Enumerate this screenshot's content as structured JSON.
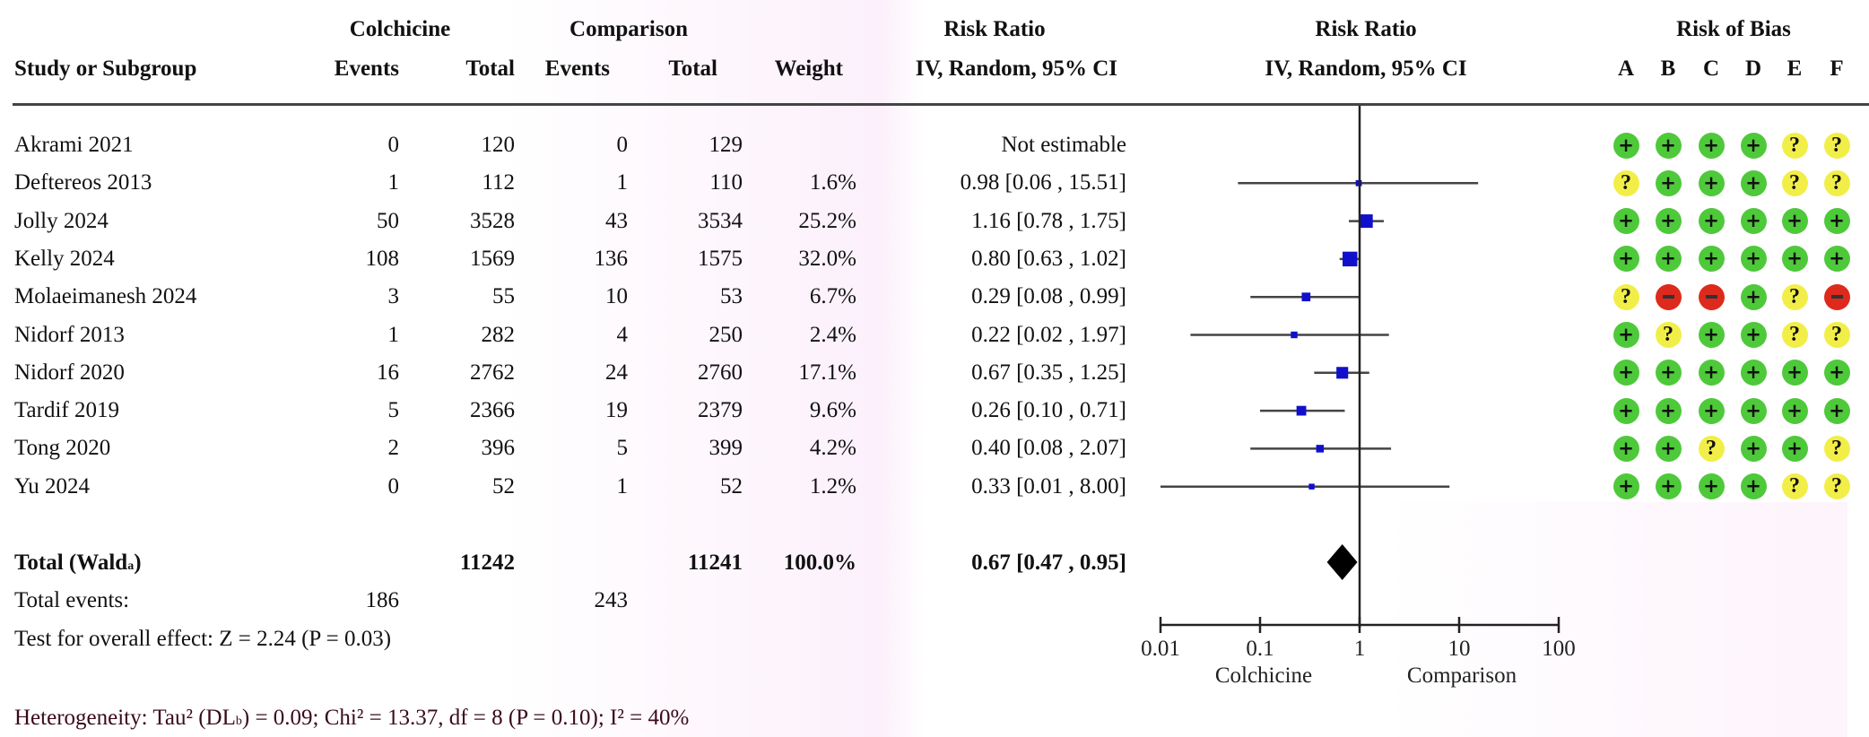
{
  "header": {
    "group1": "Colchicine",
    "group2": "Comparison",
    "risk_ratio": "Risk Ratio",
    "risk_ratio_plot": "Risk Ratio",
    "risk_of_bias": "Risk of Bias",
    "study": "Study or Subgroup",
    "events1": "Events",
    "total1": "Total",
    "events2": "Events",
    "total2": "Total",
    "weight": "Weight",
    "method": "IV, Random, 95% CI",
    "method_plot": "IV, Random, 95% CI",
    "bias_letters": [
      "A",
      "B",
      "C",
      "D",
      "E",
      "F"
    ]
  },
  "studies": [
    {
      "name": "Akrami 2021",
      "e1": "0",
      "n1": "120",
      "e2": "0",
      "n2": "129",
      "weight": "",
      "ci": "Not estimable",
      "rr": null,
      "lo": null,
      "hi": null,
      "w": 0,
      "bias": [
        "+",
        "+",
        "+",
        "+",
        "?",
        "?"
      ]
    },
    {
      "name": "Deftereos 2013",
      "e1": "1",
      "n1": "112",
      "e2": "1",
      "n2": "110",
      "weight": "1.6%",
      "ci": "0.98 [0.06 , 15.51]",
      "rr": 0.98,
      "lo": 0.06,
      "hi": 15.51,
      "w": 1.6,
      "bias": [
        "?",
        "+",
        "+",
        "+",
        "?",
        "?"
      ]
    },
    {
      "name": "Jolly 2024",
      "e1": "50",
      "n1": "3528",
      "e2": "43",
      "n2": "3534",
      "weight": "25.2%",
      "ci": "1.16 [0.78 , 1.75]",
      "rr": 1.16,
      "lo": 0.78,
      "hi": 1.75,
      "w": 25.2,
      "bias": [
        "+",
        "+",
        "+",
        "+",
        "+",
        "+"
      ]
    },
    {
      "name": "Kelly 2024",
      "e1": "108",
      "n1": "1569",
      "e2": "136",
      "n2": "1575",
      "weight": "32.0%",
      "ci": "0.80 [0.63 , 1.02]",
      "rr": 0.8,
      "lo": 0.63,
      "hi": 1.02,
      "w": 32.0,
      "bias": [
        "+",
        "+",
        "+",
        "+",
        "+",
        "+"
      ]
    },
    {
      "name": "Molaeimanesh 2024",
      "e1": "3",
      "n1": "55",
      "e2": "10",
      "n2": "53",
      "weight": "6.7%",
      "ci": "0.29 [0.08 , 0.99]",
      "rr": 0.29,
      "lo": 0.08,
      "hi": 0.99,
      "w": 6.7,
      "bias": [
        "?",
        "-",
        "-",
        "+",
        "?",
        "-"
      ]
    },
    {
      "name": "Nidorf 2013",
      "e1": "1",
      "n1": "282",
      "e2": "4",
      "n2": "250",
      "weight": "2.4%",
      "ci": "0.22 [0.02 , 1.97]",
      "rr": 0.22,
      "lo": 0.02,
      "hi": 1.97,
      "w": 2.4,
      "bias": [
        "+",
        "?",
        "+",
        "+",
        "?",
        "?"
      ]
    },
    {
      "name": "Nidorf 2020",
      "e1": "16",
      "n1": "2762",
      "e2": "24",
      "n2": "2760",
      "weight": "17.1%",
      "ci": "0.67 [0.35 , 1.25]",
      "rr": 0.67,
      "lo": 0.35,
      "hi": 1.25,
      "w": 17.1,
      "bias": [
        "+",
        "+",
        "+",
        "+",
        "+",
        "+"
      ]
    },
    {
      "name": "Tardif 2019",
      "e1": "5",
      "n1": "2366",
      "e2": "19",
      "n2": "2379",
      "weight": "9.6%",
      "ci": "0.26 [0.10 , 0.71]",
      "rr": 0.26,
      "lo": 0.1,
      "hi": 0.71,
      "w": 9.6,
      "bias": [
        "+",
        "+",
        "+",
        "+",
        "+",
        "+"
      ]
    },
    {
      "name": "Tong 2020",
      "e1": "2",
      "n1": "396",
      "e2": "5",
      "n2": "399",
      "weight": "4.2%",
      "ci": "0.40 [0.08 , 2.07]",
      "rr": 0.4,
      "lo": 0.08,
      "hi": 2.07,
      "w": 4.2,
      "bias": [
        "+",
        "+",
        "?",
        "+",
        "+",
        "?"
      ]
    },
    {
      "name": "Yu 2024",
      "e1": "0",
      "n1": "52",
      "e2": "1",
      "n2": "52",
      "weight": "1.2%",
      "ci": "0.33 [0.01 , 8.00]",
      "rr": 0.33,
      "lo": 0.01,
      "hi": 8.0,
      "w": 1.2,
      "bias": [
        "+",
        "+",
        "+",
        "+",
        "?",
        "?"
      ]
    }
  ],
  "total": {
    "label": "Total (Wald",
    "label_sub": "a",
    "label_close": ")",
    "n1": "11242",
    "n2": "11241",
    "weight": "100.0%",
    "ci": "0.67 [0.47 , 0.95]",
    "events_label": "Total events:",
    "events1": "186",
    "events2": "243",
    "overall_effect": "Test for overall effect: Z = 2.24 (P = 0.03)",
    "heterogeneity_pre": "Heterogeneity: Tau² (DL",
    "heterogeneity_sub": "b",
    "heterogeneity_post": ") = 0.09; Chi² = 13.37, df = 8 (P = 0.10); I² = 40%"
  },
  "chart_data": {
    "type": "forest",
    "scale": "log",
    "xlim": [
      0.01,
      100
    ],
    "ticks": [
      "0.01",
      "0.1",
      "1",
      "10",
      "100"
    ],
    "tick_values": [
      0.01,
      0.1,
      1,
      10,
      100
    ],
    "favours_left": "Colchicine",
    "favours_right": "Comparison",
    "pooled": {
      "rr": 0.67,
      "lo": 0.47,
      "hi": 0.95
    },
    "colors": {
      "square": "#1010cc",
      "line": "#333333",
      "diamond": "#000000",
      "plus": "#4ec93a",
      "unclear": "#f2ee48",
      "minus": "#dd2a1c"
    }
  }
}
